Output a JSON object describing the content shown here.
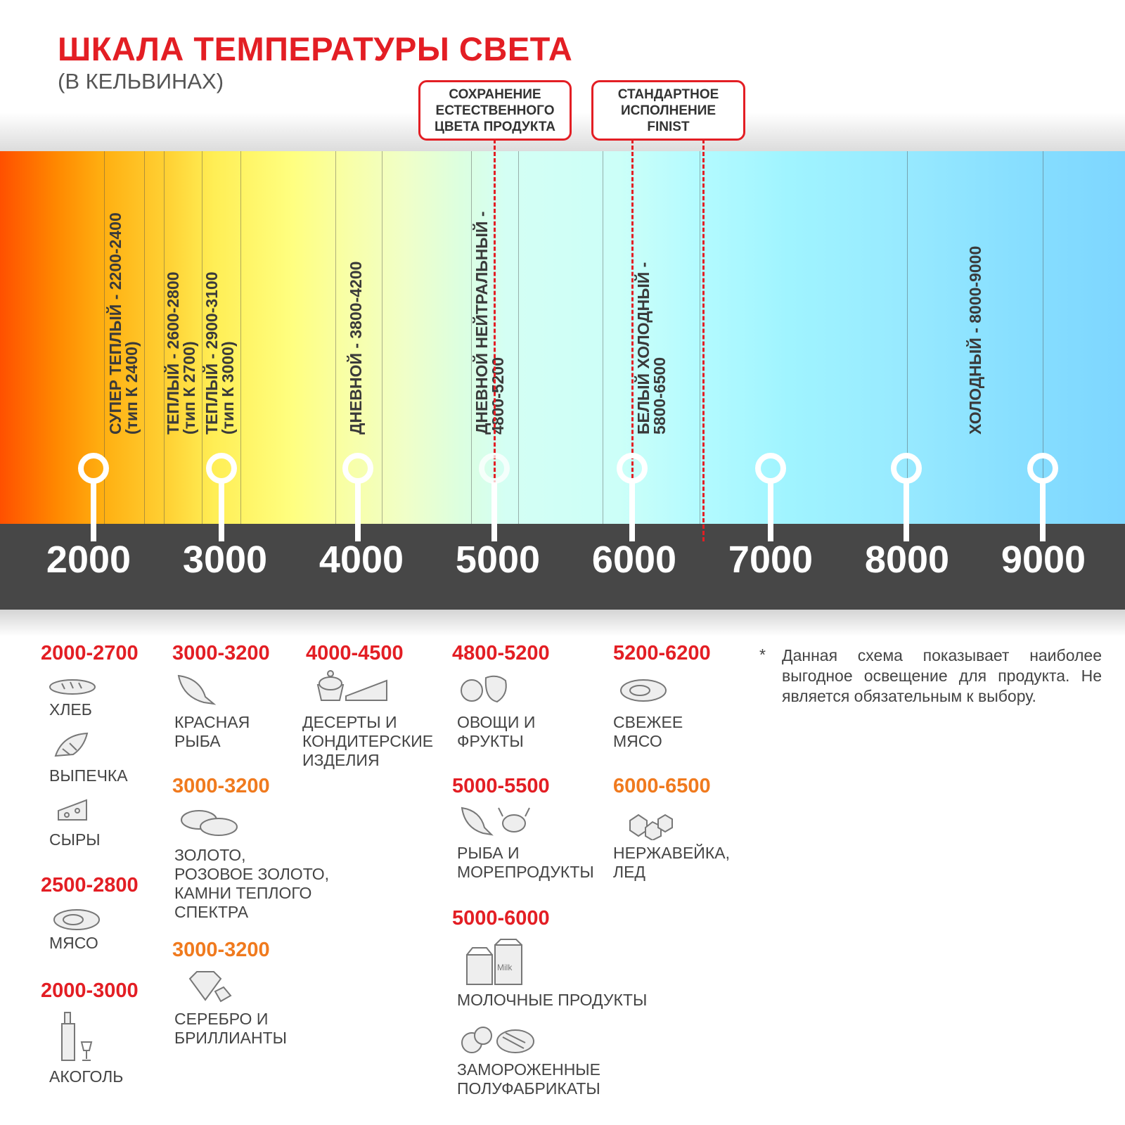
{
  "header": {
    "title": "ШКАЛА ТЕМПЕРАТУРЫ СВЕТА",
    "subtitle": "(В КЕЛЬВИНАХ)"
  },
  "callouts": [
    {
      "lines": [
        "СОХРАНЕНИЕ",
        "ЕСТЕСТВЕННОГО",
        "ЦВЕТА ПРОДУКТА"
      ]
    },
    {
      "lines": [
        "СТАНДАРТНОЕ",
        "ИСПОЛНЕНИЕ",
        "FINIST"
      ]
    }
  ],
  "scale": {
    "ticks": [
      "2000",
      "3000",
      "4000",
      "5000",
      "6000",
      "7000",
      "8000",
      "9000"
    ],
    "accent": "#e31e24",
    "bar_color": "#474747"
  },
  "zones": [
    {
      "line1": "СУПЕР ТЕПЛЫЙ - 2200-2400",
      "line2": "(тип К 2400)"
    },
    {
      "line1": "ТЕПЛЫЙ - 2600-2800",
      "line2": "(тип К 2700)"
    },
    {
      "line1": "ТЕПЛЫЙ - 2900-3100",
      "line2": "(тип К 3000)"
    },
    {
      "line1": "ДНЕВНОЙ - 3800-4200",
      "line2": ""
    },
    {
      "line1": "ДНЕВНОЙ НЕЙТРАЛЬНЫЙ -",
      "line2": "4800-5200"
    },
    {
      "line1": "БЕЛЫЙ ХОЛОДНЫЙ -",
      "line2": "5800-6500"
    },
    {
      "line1": "ХОЛОДНЫЙ - 8000-9000",
      "line2": ""
    }
  ],
  "products": {
    "r1": "2000-2700",
    "bread": "ХЛЕБ",
    "pastry": "ВЫПЕЧКА",
    "cheese": "СЫРЫ",
    "r2": "2500-2800",
    "meat": "МЯСО",
    "r3": "2000-3000",
    "alcohol": "АКОГОЛЬ",
    "r4": "3000-3200",
    "redfish": "КРАСНАЯ\nРЫБА",
    "r5": "3000-3200",
    "gold": "ЗОЛОТО,\nРОЗОВОЕ ЗОЛОТО,\nКАМНИ ТЕПЛОГО\nСПЕКТРА",
    "r6": "3000-3200",
    "silver": "СЕРЕБРО И\nБРИЛЛИАНТЫ",
    "r7": "4000-4500",
    "desserts": "ДЕСЕРТЫ И\nКОНДИТЕРСКИЕ\nИЗДЕЛИЯ",
    "r8": "4800-5200",
    "veg": "ОВОЩИ И\nФРУКТЫ",
    "r9": "5000-5500",
    "seafood": "РЫБА И\nМОРЕПРОДУКТЫ",
    "r10": "5000-6000",
    "dairy": "МОЛОЧНЫЕ ПРОДУКТЫ",
    "dairy_icon_text": "Milk",
    "frozen": "ЗАМОРОЖЕННЫЕ\nПОЛУФАБРИКАТЫ",
    "r11": "5200-6200",
    "freshmeat": "СВЕЖЕЕ\nМЯСО",
    "r12": "6000-6500",
    "steel": "НЕРЖАВЕЙКА,\nЛЕД"
  },
  "note": {
    "star": "*",
    "text": "Данная схема показывает наиболее выгодное освещение для продукта. Не является обязательным к выбору."
  }
}
